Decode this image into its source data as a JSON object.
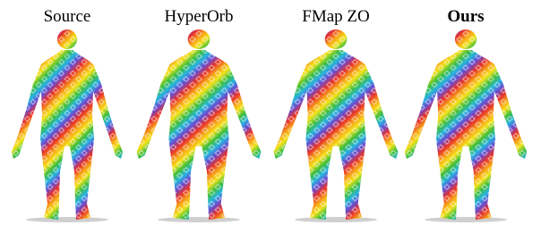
{
  "figure": {
    "labels": [
      "Source",
      "HyperOrb",
      "FMap ZO",
      "Ours"
    ]
  }
}
